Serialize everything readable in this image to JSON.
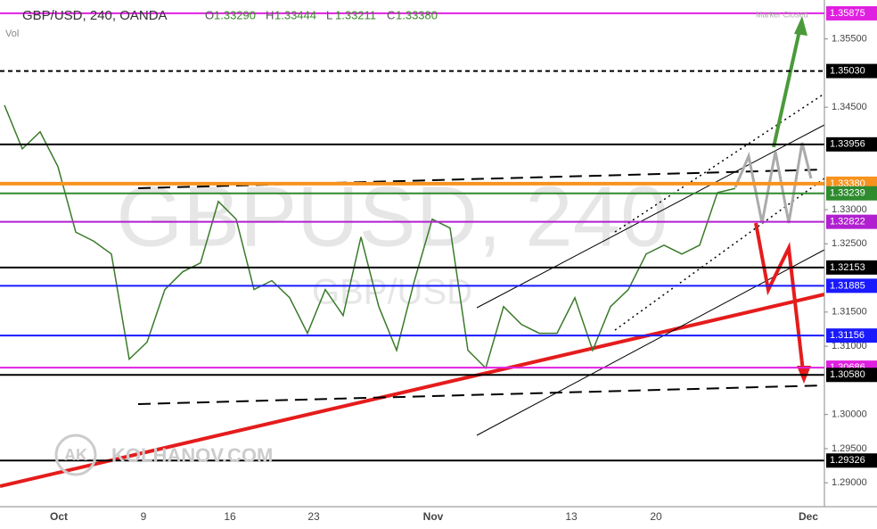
{
  "header": {
    "symbol": "GBP/USD, 240, OANDA",
    "ohlc": [
      {
        "key": "O",
        "value": "1.33290"
      },
      {
        "key": "H",
        "value": "1.33444"
      },
      {
        "key": "L",
        "value": "1.33211"
      },
      {
        "key": "C",
        "value": "1.33380"
      }
    ],
    "volume": "Vol",
    "status": "Marker Closed"
  },
  "watermark": {
    "main": "GBPUSD, 240",
    "sub": "GBP/USD",
    "brand": "KOLHANOV.COM",
    "logo": "AK"
  },
  "chart_data": {
    "type": "line",
    "ylim": [
      1.2865,
      1.3607
    ],
    "yticks": [
      {
        "value": 1.355,
        "label": "1.35500"
      },
      {
        "value": 1.345,
        "label": "1.34500"
      },
      {
        "value": 1.33,
        "label": "1.33000"
      },
      {
        "value": 1.325,
        "label": "1.32500"
      },
      {
        "value": 1.315,
        "label": "1.31500"
      },
      {
        "value": 1.31,
        "label": "1.31000"
      },
      {
        "value": 1.3,
        "label": "1.30000"
      },
      {
        "value": 1.295,
        "label": "1.29500"
      },
      {
        "value": 1.29,
        "label": "1.29000"
      }
    ],
    "levels": [
      {
        "value": 1.35875,
        "label": "1.35875",
        "color": "#e020e0"
      },
      {
        "value": 1.3503,
        "label": "1.35030",
        "color": "#000000"
      },
      {
        "value": 1.33956,
        "label": "1.33956",
        "color": "#000000"
      },
      {
        "value": 1.3338,
        "label": "1.33380",
        "color": "#f7931e"
      },
      {
        "value": 1.33239,
        "label": "1.33239",
        "color": "#2e8b2e"
      },
      {
        "value": 1.32822,
        "label": "1.32822",
        "color": "#b020d0"
      },
      {
        "value": 1.32153,
        "label": "1.32153",
        "color": "#000000"
      },
      {
        "value": 1.31885,
        "label": "1.31885",
        "color": "#1a1aff"
      },
      {
        "value": 1.31156,
        "label": "1.31156",
        "color": "#1a1aff"
      },
      {
        "value": 1.30686,
        "label": "1.30686",
        "color": "#e020e0"
      },
      {
        "value": 1.3058,
        "label": "1.30580",
        "color": "#000000"
      },
      {
        "value": 1.29326,
        "label": "1.29326",
        "color": "#000000"
      }
    ],
    "x_labels": [
      "Oct",
      "9",
      "16",
      "23",
      "Nov",
      "13",
      "20",
      "Dec"
    ],
    "series": [
      {
        "name": "GBP/USD",
        "color": "#3a7a2a",
        "values": [
          1.3453,
          1.3389,
          1.3414,
          1.3363,
          1.3267,
          1.3254,
          1.3235,
          1.3081,
          1.3106,
          1.3183,
          1.3209,
          1.3222,
          1.3312,
          1.3286,
          1.3183,
          1.3196,
          1.3171,
          1.3119,
          1.3183,
          1.3145,
          1.326,
          1.3158,
          1.3094,
          1.3196,
          1.3286,
          1.3273,
          1.3094,
          1.3068,
          1.3158,
          1.3132,
          1.3119,
          1.3119,
          1.3171,
          1.3094,
          1.3158,
          1.3183,
          1.3235,
          1.3248,
          1.3235,
          1.3248,
          1.3325,
          1.3331
        ]
      }
    ]
  }
}
